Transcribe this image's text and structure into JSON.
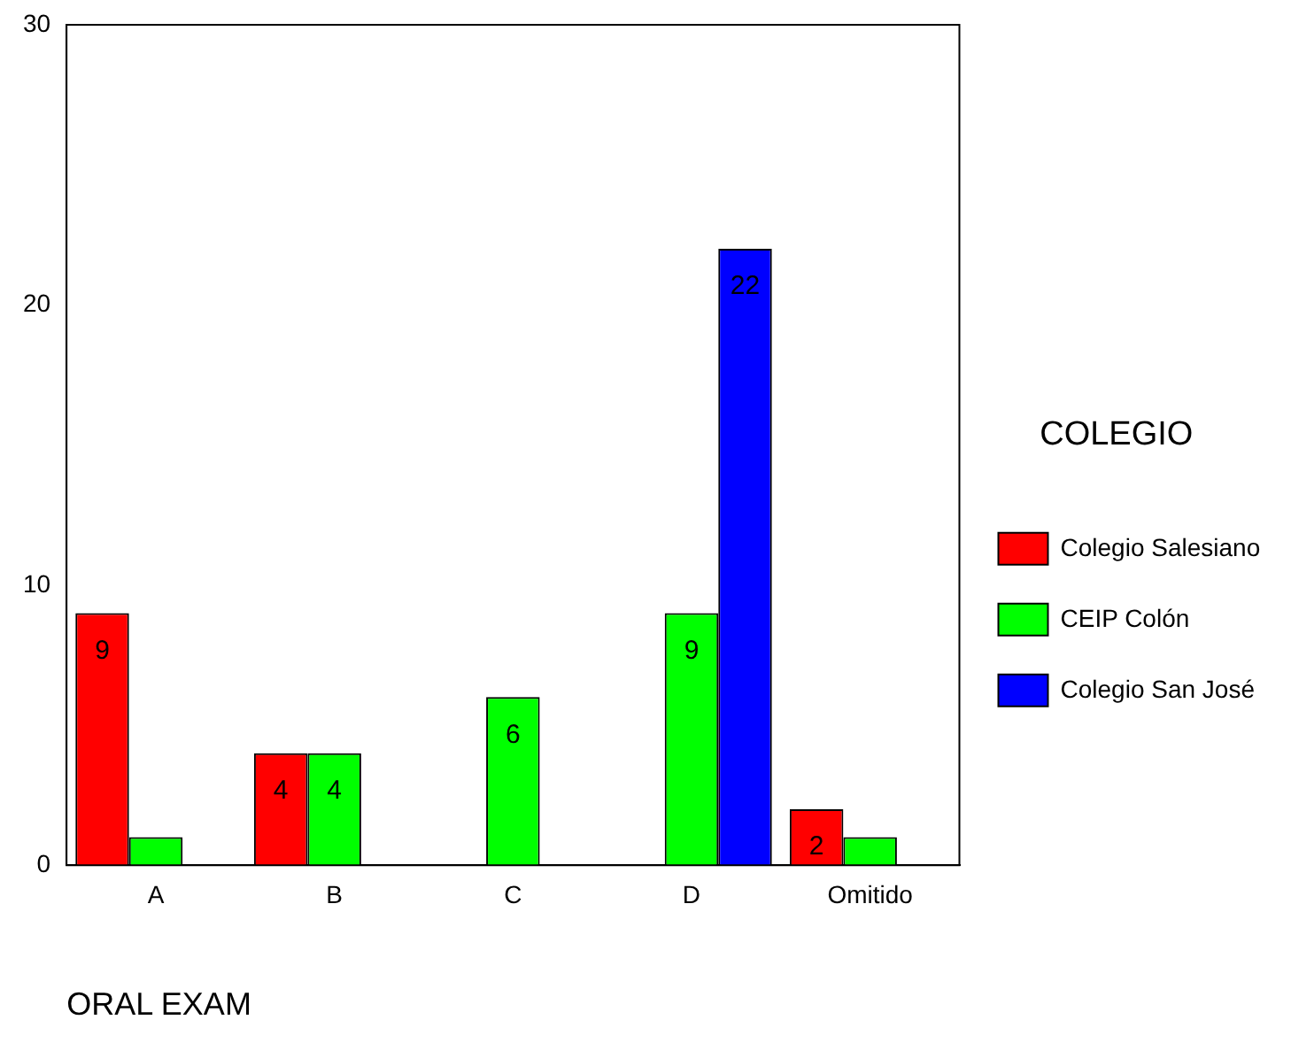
{
  "chart_data": {
    "type": "bar",
    "xlabel": "ORAL EXAM",
    "legend_title": "COLEGIO",
    "legend": "right",
    "grid": false,
    "categories": [
      "A",
      "B",
      "C",
      "D",
      "Omitido"
    ],
    "ylim": [
      0,
      30
    ],
    "yticks": [
      0,
      10,
      20,
      30
    ],
    "series": [
      {
        "name": "Colegio Salesiano",
        "color": "#ff0000",
        "values": [
          9,
          4,
          0,
          0,
          2
        ],
        "value_labels": [
          "9",
          "4",
          null,
          null,
          "2"
        ]
      },
      {
        "name": "CEIP Colón",
        "color": "#00ff00",
        "values": [
          1,
          4,
          6,
          9,
          1
        ],
        "value_labels": [
          null,
          "4",
          "6",
          "9",
          null
        ]
      },
      {
        "name": "Colegio San José",
        "color": "#0000ff",
        "values": [
          0,
          0,
          0,
          22,
          0
        ],
        "value_labels": [
          null,
          null,
          null,
          "22",
          null
        ]
      }
    ]
  }
}
